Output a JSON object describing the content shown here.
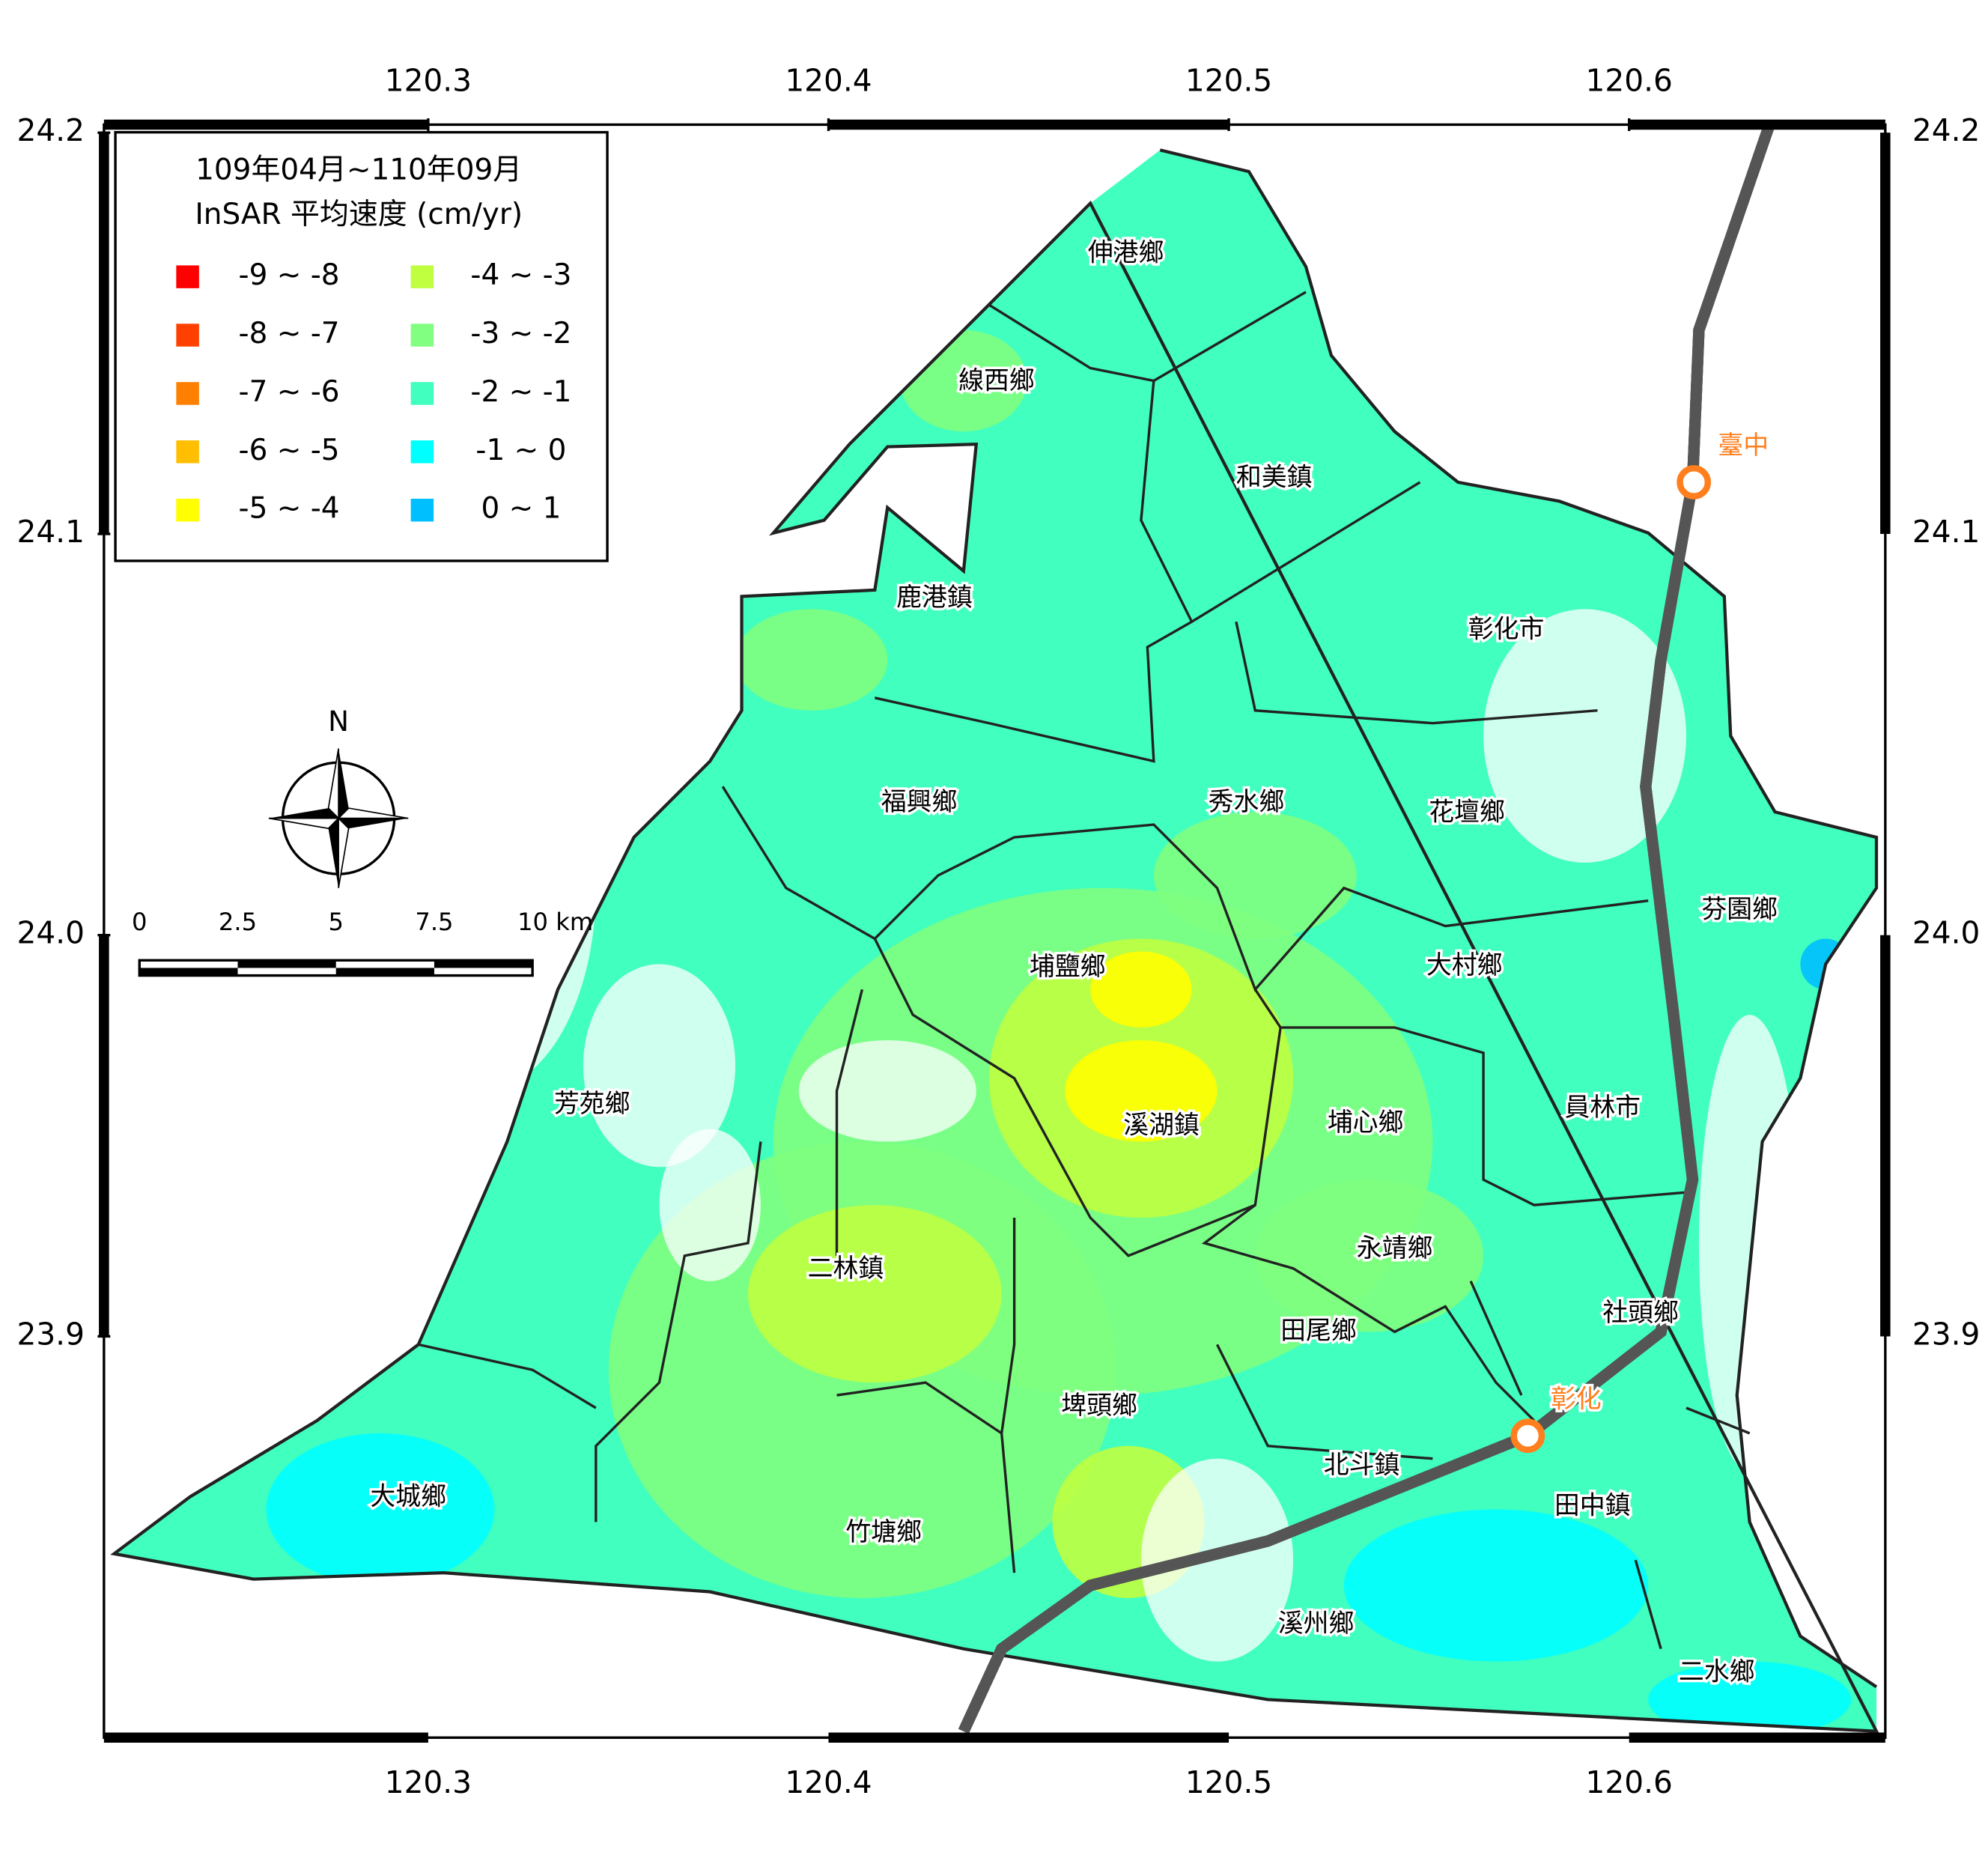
{
  "map": {
    "title": [
      "109年04月~110年09月",
      "InSAR 平均速度 (cm/yr)"
    ],
    "legend": [
      {
        "label": "-9 ~ -8",
        "color": "#ff0000"
      },
      {
        "label": "-8 ~ -7",
        "color": "#ff4000"
      },
      {
        "label": "-7 ~ -6",
        "color": "#ff8000"
      },
      {
        "label": "-6 ~ -5",
        "color": "#ffbf00"
      },
      {
        "label": "-5 ~ -4",
        "color": "#ffff00"
      },
      {
        "label": "-4 ~ -3",
        "color": "#bfff40"
      },
      {
        "label": "-3 ~ -2",
        "color": "#80ff80"
      },
      {
        "label": "-2 ~ -1",
        "color": "#40ffbf"
      },
      {
        "label": "-1 ~ 0",
        "color": "#00ffff"
      },
      {
        "label": "0 ~ 1",
        "color": "#00bfff"
      }
    ],
    "xlim": [
      120.219,
      120.664
    ],
    "ylim": [
      23.8,
      24.202
    ],
    "xticks": [
      120.3,
      120.4,
      120.5,
      120.6
    ],
    "yticks": [
      24.2,
      24.1,
      {
        "value": 24,
        "label": "24.0"
      },
      23.9
    ],
    "north": "N",
    "scalebar": [
      0,
      2.5,
      5,
      7.5,
      {
        "value": 10,
        "label": "10 km"
      }
    ],
    "townships": [
      "伸港鄉",
      "線西鄉",
      "和美鎮",
      "鹿港鎮",
      "彰化市",
      "福興鄉",
      "秀水鄉",
      "花壇鄉",
      "芬園鄉",
      "埔鹽鄉",
      "大村鄉",
      "芳苑鄉",
      "溪湖鎮",
      "埔心鄉",
      "員林市",
      "二林鎮",
      "永靖鄉",
      "社頭鄉",
      "田尾鄉",
      "埤頭鄉",
      "北斗鎮",
      "大城鄉",
      "田中鎮",
      "竹塘鄉",
      "溪州鄉",
      "二水鄉"
    ],
    "stations": [
      "臺中",
      "彰化"
    ],
    "railway_color": "#ff7f1f"
  }
}
